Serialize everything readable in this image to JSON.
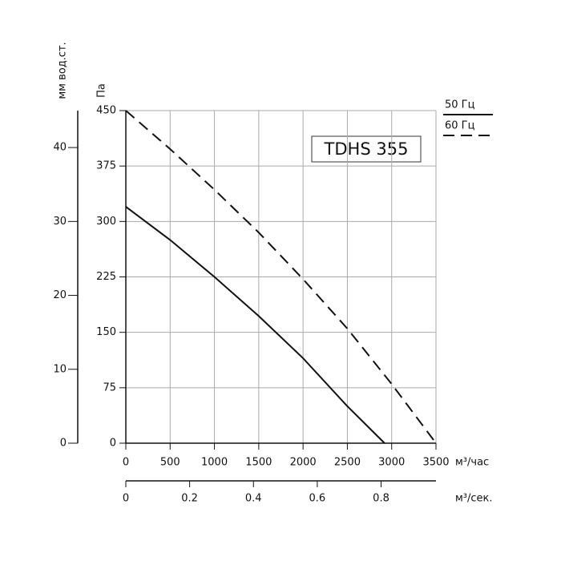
{
  "chart_data": {
    "type": "line",
    "annotation": "TDHS 355",
    "xlabel": "м³/час",
    "ylabel": "Па",
    "y2label": "мм вод.ст.",
    "x2label": "м³/сек.",
    "xlim": [
      0,
      3500
    ],
    "xticks": [
      0,
      500,
      1000,
      1500,
      2000,
      2500,
      3000,
      3500
    ],
    "ylim": [
      0,
      450
    ],
    "yticks": [
      0,
      75,
      150,
      225,
      300,
      375,
      450
    ],
    "y2lim": [
      0,
      45
    ],
    "y2ticks": [
      0,
      10,
      20,
      30,
      40
    ],
    "x2lim": [
      0,
      0.972
    ],
    "x2ticks": [
      0,
      0.2,
      0.4,
      0.6,
      0.8
    ],
    "grid": true,
    "series": [
      {
        "name": "50 Гц",
        "color": "#111111",
        "dash": false,
        "x": [
          0,
          500,
          1000,
          1500,
          2000,
          2500,
          2920
        ],
        "values": [
          320,
          275,
          225,
          172,
          115,
          50,
          0
        ]
      },
      {
        "name": "60 Гц",
        "color": "#111111",
        "dash": true,
        "x": [
          0,
          500,
          1000,
          1500,
          2000,
          2500,
          3000,
          3500
        ],
        "values": [
          450,
          398,
          343,
          285,
          222,
          155,
          80,
          0
        ]
      }
    ]
  }
}
